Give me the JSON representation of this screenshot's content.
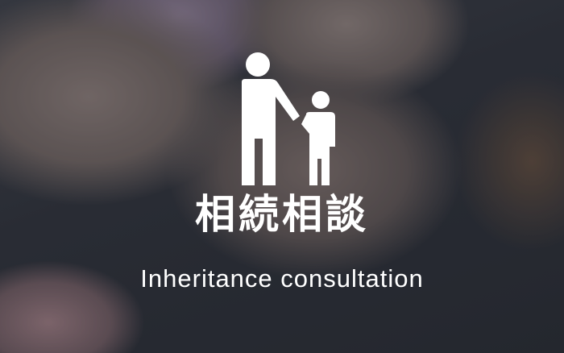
{
  "card": {
    "title": "相続相談",
    "subtitle": "Inheritance consultation",
    "icon": "parent-child-icon",
    "text_color": "#ffffff"
  }
}
